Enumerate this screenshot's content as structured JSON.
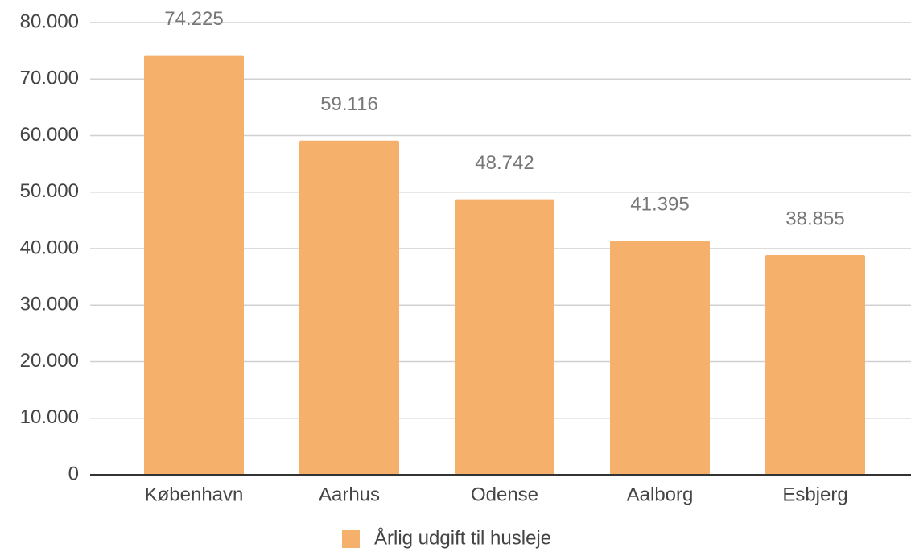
{
  "chart_data": {
    "type": "bar",
    "categories": [
      "København",
      "Aarhus",
      "Odense",
      "Aalborg",
      "Esbjerg"
    ],
    "series": [
      {
        "name": "Årlig udgift til husleje",
        "color": "#f5b06b",
        "values": [
          74225,
          59116,
          48742,
          41395,
          38855
        ],
        "value_labels": [
          "74.225",
          "59.116",
          "48.742",
          "41.395",
          "38.855"
        ]
      }
    ],
    "ylim": [
      0,
      80000
    ],
    "yticks": [
      0,
      {
        "value": 10000,
        "label": "10.000"
      },
      {
        "value": 20000,
        "label": "20.000"
      },
      {
        "value": 30000,
        "label": "30.000"
      },
      {
        "value": 40000,
        "label": "40.000"
      },
      {
        "value": 50000,
        "label": "50.000"
      },
      {
        "value": 60000,
        "label": "60.000"
      },
      {
        "value": 70000,
        "label": "70.000"
      },
      {
        "value": 80000,
        "label": "80.000"
      }
    ],
    "grid": true,
    "legend": "bottom"
  }
}
